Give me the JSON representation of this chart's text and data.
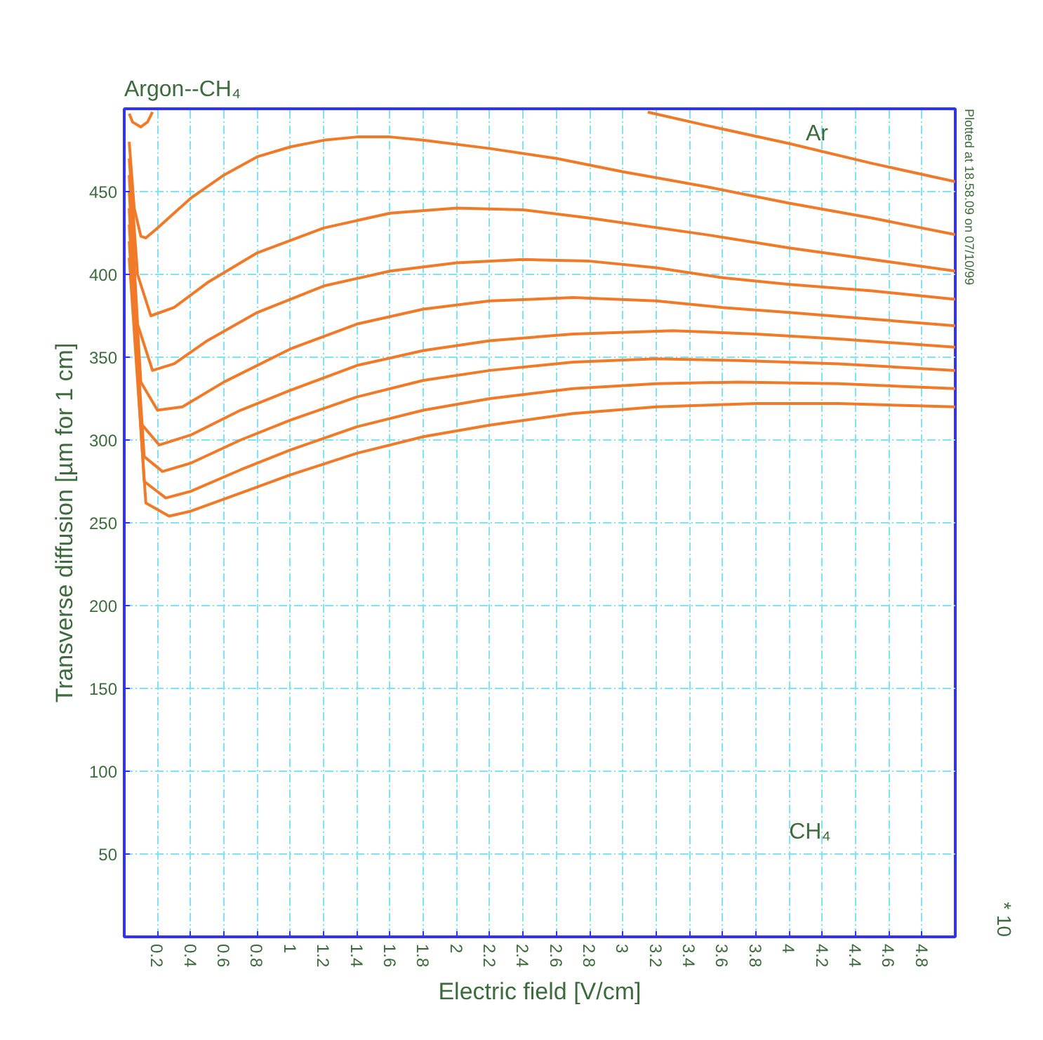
{
  "chart_data": {
    "type": "line",
    "title": "Argon--CH₄",
    "xlabel": "Electric field [V/cm]",
    "ylabel": "Transverse diffusion [µm for 1 cm]",
    "xlim": [
      0,
      5
    ],
    "ylim": [
      0,
      500
    ],
    "xticks": [
      0.2,
      0.4,
      0.6,
      0.8,
      1,
      1.2,
      1.4,
      1.6,
      1.8,
      2,
      2.2,
      2.4,
      2.6,
      2.8,
      3,
      3.2,
      3.4,
      3.6,
      3.8,
      4,
      4.2,
      4.4,
      4.6,
      4.8
    ],
    "yticks": [
      50,
      100,
      150,
      200,
      250,
      300,
      350,
      400,
      450
    ],
    "grid": true,
    "marker": "none",
    "line_style": "solid",
    "series": [
      {
        "color": "#f07a28",
        "x": [
          0.03,
          0.05,
          0.1,
          0.14,
          0.17,
          1.0,
          3.15,
          3.5,
          4.0,
          4.5,
          5.0
        ],
        "values": [
          497,
          492,
          489,
          492,
          498,
          null,
          498,
          490,
          479,
          467,
          456
        ]
      },
      {
        "color": "#f07a28",
        "x": [
          0.03,
          0.06,
          0.1,
          0.13,
          0.2,
          0.4,
          0.6,
          0.8,
          1.0,
          1.2,
          1.4,
          1.6,
          1.8,
          2.2,
          2.6,
          3.0,
          3.5,
          4.0,
          4.5,
          5.0
        ],
        "values": [
          480,
          440,
          423,
          422,
          428,
          446,
          460,
          471,
          477,
          481,
          483,
          483,
          481,
          476,
          470,
          462,
          453,
          443,
          434,
          424
        ]
      },
      {
        "color": "#f07a28",
        "x": [
          0.03,
          0.08,
          0.16,
          0.3,
          0.5,
          0.8,
          1.2,
          1.6,
          2.0,
          2.4,
          2.8,
          3.5,
          4.0,
          4.5,
          5.0
        ],
        "values": [
          470,
          400,
          375,
          380,
          395,
          413,
          428,
          437,
          440,
          439,
          434,
          424,
          416,
          409,
          402
        ]
      },
      {
        "color": "#f07a28",
        "x": [
          0.03,
          0.08,
          0.17,
          0.3,
          0.5,
          0.8,
          1.2,
          1.6,
          2.0,
          2.4,
          2.8,
          3.2,
          3.6,
          4.0,
          4.5,
          5.0
        ],
        "values": [
          460,
          370,
          342,
          346,
          360,
          377,
          393,
          402,
          407,
          409,
          408,
          404,
          398,
          394,
          390,
          385
        ]
      },
      {
        "color": "#f07a28",
        "x": [
          0.03,
          0.1,
          0.2,
          0.35,
          0.6,
          1.0,
          1.4,
          1.8,
          2.2,
          2.7,
          3.2,
          3.6,
          4.0,
          4.5,
          5.0
        ],
        "values": [
          450,
          335,
          318,
          320,
          335,
          355,
          370,
          379,
          384,
          386,
          384,
          380,
          377,
          373,
          369
        ]
      },
      {
        "color": "#f07a28",
        "x": [
          0.03,
          0.1,
          0.21,
          0.4,
          0.7,
          1.0,
          1.4,
          1.8,
          2.2,
          2.7,
          3.3,
          3.8,
          4.3,
          5.0
        ],
        "values": [
          440,
          310,
          297,
          303,
          318,
          330,
          345,
          354,
          360,
          364,
          366,
          364,
          361,
          356
        ]
      },
      {
        "color": "#f07a28",
        "x": [
          0.03,
          0.12,
          0.23,
          0.4,
          0.7,
          1.0,
          1.4,
          1.8,
          2.2,
          2.7,
          3.2,
          3.7,
          4.3,
          5.0
        ],
        "values": [
          430,
          290,
          281,
          286,
          300,
          312,
          326,
          336,
          342,
          347,
          349,
          348,
          346,
          342
        ]
      },
      {
        "color": "#f07a28",
        "x": [
          0.03,
          0.12,
          0.25,
          0.4,
          0.7,
          1.0,
          1.4,
          1.8,
          2.2,
          2.7,
          3.2,
          3.7,
          4.3,
          5.0
        ],
        "values": [
          420,
          275,
          265,
          269,
          282,
          294,
          308,
          318,
          325,
          331,
          334,
          335,
          334,
          331
        ]
      },
      {
        "color": "#f07a28",
        "x": [
          0.03,
          0.13,
          0.27,
          0.4,
          0.7,
          1.0,
          1.4,
          1.8,
          2.2,
          2.7,
          3.2,
          3.8,
          4.3,
          5.0
        ],
        "values": [
          410,
          262,
          254,
          257,
          268,
          279,
          292,
          302,
          309,
          316,
          320,
          322,
          322,
          320
        ]
      }
    ],
    "annotations": [
      "Ar",
      "CH₄",
      "Plotted at 18.58.09 on 07/10/99",
      "* 10"
    ]
  }
}
